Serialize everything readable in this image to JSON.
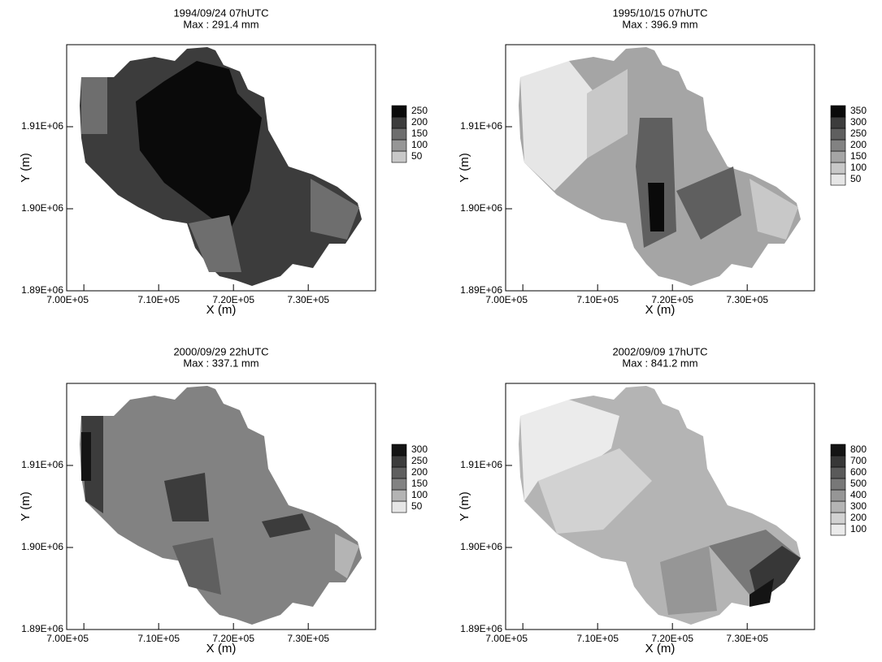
{
  "chart_data": [
    {
      "type": "heatmap",
      "title": "1994/09/24 07hUTC",
      "subtitle": "Max : 291.4 mm",
      "xlabel": "X (m)",
      "ylabel": "Y (m)",
      "xlim": [
        697700,
        739000
      ],
      "ylim": [
        1890000,
        1920000
      ],
      "xticks": [
        {
          "value": 700000,
          "label": "7.00E+05"
        },
        {
          "value": 710000,
          "label": "7.10E+05"
        },
        {
          "value": 720000,
          "label": "7.20E+05"
        },
        {
          "value": 730000,
          "label": "7.30E+05"
        }
      ],
      "yticks": [
        {
          "value": 1890000,
          "label": "1.89E+06"
        },
        {
          "value": 1900000,
          "label": "1.90E+06"
        },
        {
          "value": 1910000,
          "label": "1.91E+06"
        }
      ],
      "colorbar": {
        "ticks": [
          50,
          100,
          150,
          200,
          250
        ],
        "colors": [
          "#c8c8c8",
          "#969696",
          "#6e6e6e",
          "#3c3c3c",
          "#0a0a0a"
        ]
      }
    },
    {
      "type": "heatmap",
      "title": "1995/10/15 07hUTC",
      "subtitle": "Max : 396.9 mm",
      "xlabel": "X (m)",
      "ylabel": "Y (m)",
      "xlim": [
        697700,
        739000
      ],
      "ylim": [
        1890000,
        1920000
      ],
      "xticks": [
        {
          "value": 700000,
          "label": "7.00E+05"
        },
        {
          "value": 710000,
          "label": "7.10E+05"
        },
        {
          "value": 720000,
          "label": "7.20E+05"
        },
        {
          "value": 730000,
          "label": "7.30E+05"
        }
      ],
      "yticks": [
        {
          "value": 1890000,
          "label": "1.89E+06"
        },
        {
          "value": 1900000,
          "label": "1.90E+06"
        },
        {
          "value": 1910000,
          "label": "1.91E+06"
        }
      ],
      "colorbar": {
        "ticks": [
          50,
          100,
          150,
          200,
          250,
          300,
          350
        ],
        "colors": [
          "#e6e6e6",
          "#c8c8c8",
          "#a5a5a5",
          "#828282",
          "#5f5f5f",
          "#3c3c3c",
          "#0a0a0a"
        ]
      }
    },
    {
      "type": "heatmap",
      "title": "2000/09/29 22hUTC",
      "subtitle": "Max : 337.1 mm",
      "xlabel": "X (m)",
      "ylabel": "Y (m)",
      "xlim": [
        697700,
        739000
      ],
      "ylim": [
        1890000,
        1920000
      ],
      "xticks": [
        {
          "value": 700000,
          "label": "7.00E+05"
        },
        {
          "value": 710000,
          "label": "7.10E+05"
        },
        {
          "value": 720000,
          "label": "7.20E+05"
        },
        {
          "value": 730000,
          "label": "7.30E+05"
        }
      ],
      "yticks": [
        {
          "value": 1890000,
          "label": "1.89E+06"
        },
        {
          "value": 1900000,
          "label": "1.90E+06"
        },
        {
          "value": 1910000,
          "label": "1.91E+06"
        }
      ],
      "colorbar": {
        "ticks": [
          50,
          100,
          150,
          200,
          250,
          300
        ],
        "colors": [
          "#e6e6e6",
          "#b4b4b4",
          "#828282",
          "#5f5f5f",
          "#3c3c3c",
          "#141414"
        ]
      }
    },
    {
      "type": "heatmap",
      "title": "2002/09/09 17hUTC",
      "subtitle": "Max : 841.2 mm",
      "xlabel": "X (m)",
      "ylabel": "Y (m)",
      "xlim": [
        697700,
        739000
      ],
      "ylim": [
        1890000,
        1920000
      ],
      "xticks": [
        {
          "value": 700000,
          "label": "7.00E+05"
        },
        {
          "value": 710000,
          "label": "7.10E+05"
        },
        {
          "value": 720000,
          "label": "7.20E+05"
        },
        {
          "value": 730000,
          "label": "7.30E+05"
        }
      ],
      "yticks": [
        {
          "value": 1890000,
          "label": "1.89E+06"
        },
        {
          "value": 1900000,
          "label": "1.90E+06"
        },
        {
          "value": 1910000,
          "label": "1.91E+06"
        }
      ],
      "colorbar": {
        "ticks": [
          100,
          200,
          300,
          400,
          500,
          600,
          700,
          800
        ],
        "colors": [
          "#ebebeb",
          "#d2d2d2",
          "#b4b4b4",
          "#969696",
          "#787878",
          "#5a5a5a",
          "#373737",
          "#141414"
        ]
      }
    }
  ]
}
